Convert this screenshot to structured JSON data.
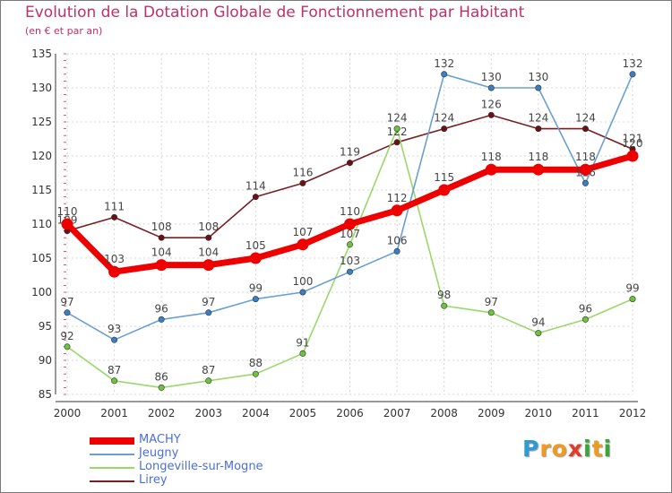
{
  "chart_data": {
    "type": "line",
    "title": "Evolution de la Dotation Globale de Fonctionnement par Habitant",
    "subtitle": "(en € et par an)",
    "xlabel": "",
    "ylabel": "",
    "ylim": [
      85,
      135
    ],
    "yticks": [
      85,
      90,
      95,
      100,
      105,
      110,
      115,
      120,
      125,
      130,
      135
    ],
    "x": [
      "2000",
      "2001",
      "2002",
      "2003",
      "2004",
      "2005",
      "2006",
      "2007",
      "2008",
      "2009",
      "2010",
      "2011",
      "2012"
    ],
    "grid": true,
    "legend_position": "bottom-left",
    "series": [
      {
        "name": "Lirey",
        "color": "#7a1e22",
        "point_color": "#6a1016",
        "emphasis": false,
        "values": [
          109,
          111,
          108,
          108,
          114,
          116,
          119,
          122,
          124,
          126,
          124,
          124,
          121
        ]
      },
      {
        "name": "Longeville-sur-Mogne",
        "color": "#9ad86a",
        "point_color": "#6cc43a",
        "emphasis": false,
        "values": [
          92,
          87,
          86,
          87,
          88,
          91,
          107,
          124,
          98,
          97,
          94,
          96,
          99
        ]
      },
      {
        "name": "Jeugny",
        "color": "#6aa0d0",
        "point_color": "#3a7fc4",
        "emphasis": false,
        "values": [
          97,
          93,
          96,
          97,
          99,
          100,
          103,
          106,
          132,
          130,
          130,
          116,
          132
        ]
      },
      {
        "name": "MACHY",
        "color": "#ee0000",
        "point_color": "#ee0000",
        "emphasis": true,
        "values": [
          110,
          103,
          104,
          104,
          105,
          107,
          110,
          112,
          115,
          118,
          118,
          118,
          120
        ]
      }
    ],
    "legend_order": [
      "MACHY",
      "Jeugny",
      "Longeville-sur-Mogne",
      "Lirey"
    ]
  },
  "logo": {
    "letters": [
      "P",
      "r",
      "o",
      "x",
      "i",
      "t",
      "i"
    ],
    "colors": [
      "#2e9ad6",
      "#f39a1e",
      "#f39a1e",
      "#e63a2a",
      "#3aa63a",
      "#f39a1e",
      "#3aa63a"
    ]
  }
}
